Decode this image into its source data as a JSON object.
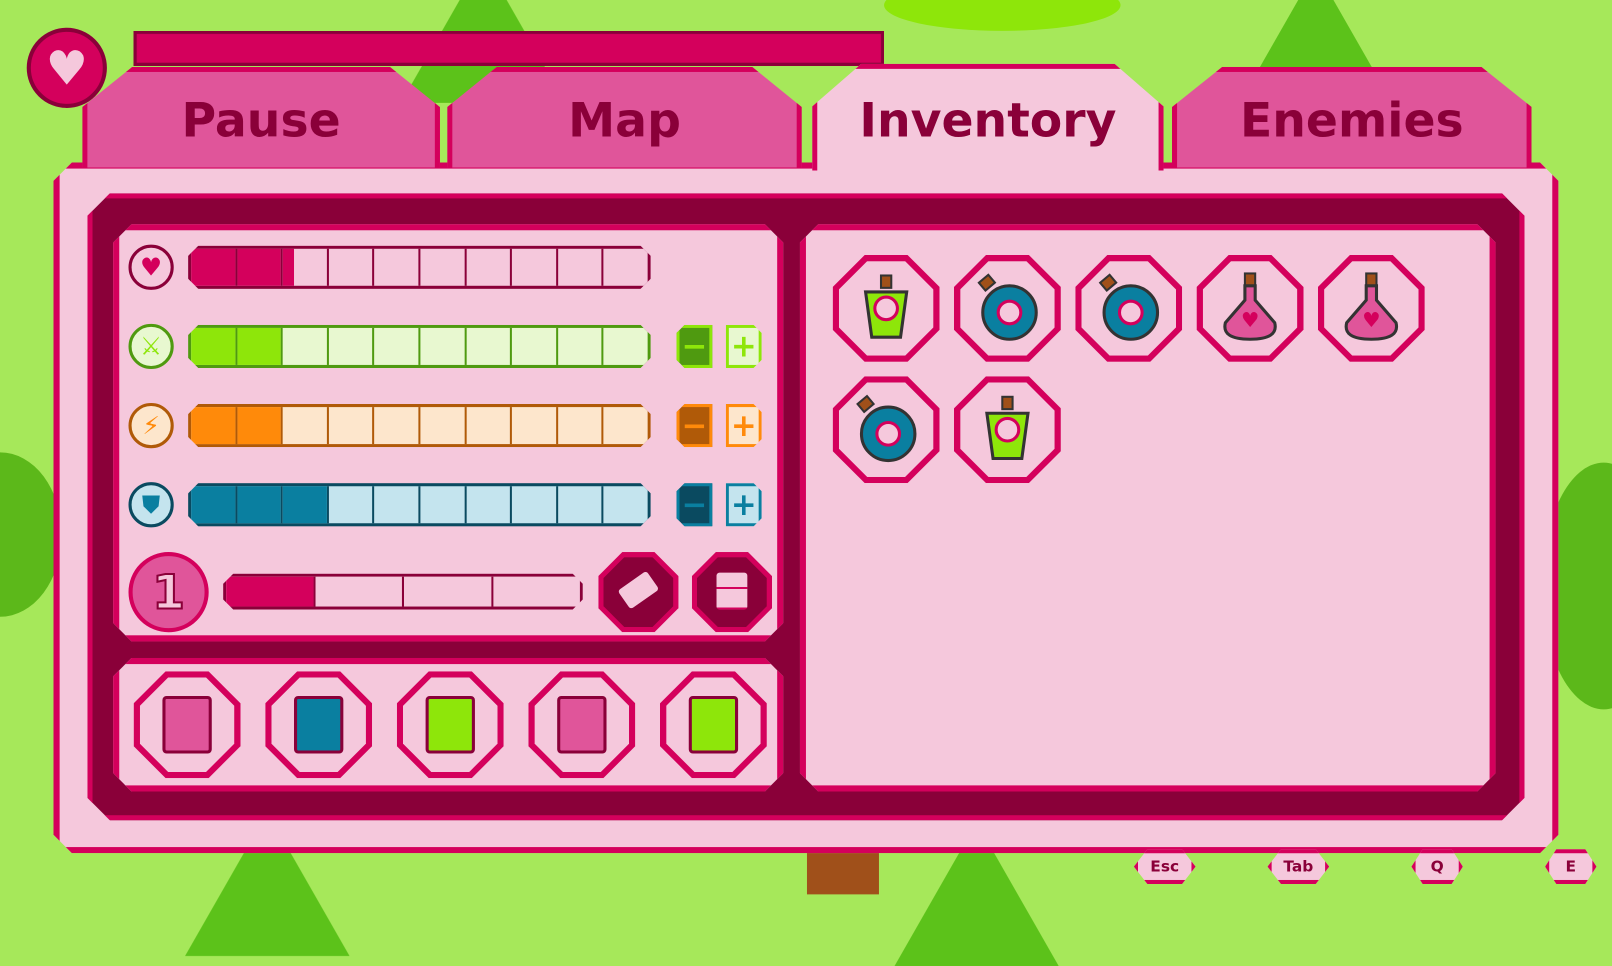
{
  "colors": {
    "accent": "#d4005c",
    "dark": "#8a0039",
    "panel": "#f5c8dc",
    "background": "#a6e85a"
  },
  "hud": {
    "heart_icon": "heart-icon"
  },
  "tabs": [
    {
      "label": "Pause",
      "active": false
    },
    {
      "label": "Map",
      "active": false
    },
    {
      "label": "Inventory",
      "active": true
    },
    {
      "label": "Enemies",
      "active": false
    }
  ],
  "stats": [
    {
      "name": "health",
      "icon": "heart-icon",
      "value": 2.25,
      "max": 10,
      "color": "#d4005c",
      "border": "#8a0039",
      "empty": "#f5c8dc",
      "adjustable": false
    },
    {
      "name": "attack",
      "icon": "sword-icon",
      "value": 2,
      "max": 10,
      "color": "#8ee60a",
      "border": "#4f9a10",
      "empty": "#e8f8d0",
      "adjustable": true
    },
    {
      "name": "speed",
      "icon": "lightning-icon",
      "value": 2,
      "max": 10,
      "color": "#ff8a0a",
      "border": "#b05a08",
      "empty": "#fde6cc",
      "adjustable": true
    },
    {
      "name": "defense",
      "icon": "shield-icon",
      "value": 3,
      "max": 10,
      "color": "#0a7fa0",
      "border": "#0a4a60",
      "empty": "#c4e4ee",
      "adjustable": true
    }
  ],
  "level": {
    "value": "1",
    "xp": 1,
    "xp_max": 4
  },
  "actions": [
    {
      "name": "erase",
      "icon": "eraser-icon"
    },
    {
      "name": "save",
      "icon": "floppy-disk-icon"
    }
  ],
  "equipment": [
    {
      "icon": "hat-icon",
      "color": "#e0559a"
    },
    {
      "icon": "shirt-icon",
      "color": "#0a7fa0"
    },
    {
      "icon": "pants-icon",
      "color": "#8ee60a"
    },
    {
      "icon": "boots-icon",
      "color": "#e0559a"
    },
    {
      "icon": "sword-card-icon",
      "color": "#8ee60a"
    }
  ],
  "inventory": [
    "green-potion",
    "blue-potion",
    "blue-potion",
    "pink-potion",
    "pink-potion",
    "blue-potion",
    "green-potion"
  ],
  "keys": [
    {
      "label": "Esc"
    },
    {
      "label": "Tab"
    },
    {
      "label": "Q"
    },
    {
      "label": "E"
    }
  ]
}
